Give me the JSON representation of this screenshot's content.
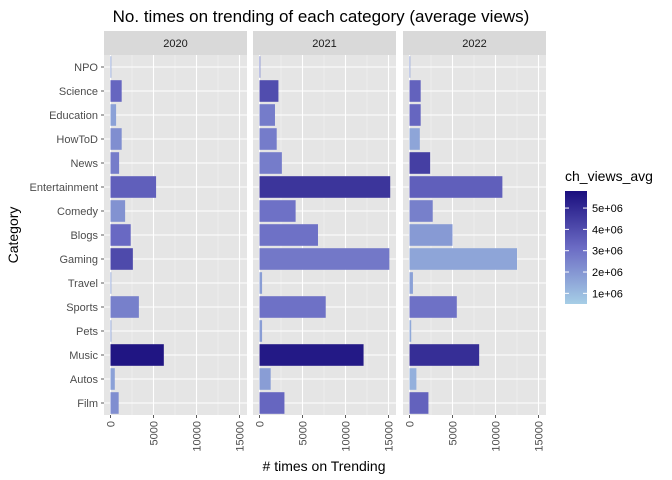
{
  "chart_data": {
    "type": "bar",
    "orientation": "horizontal",
    "title": "No. times on trending of each category (average views)",
    "xlabel": "# times on Trending",
    "ylabel": "Category",
    "xlim": [
      0,
      15000
    ],
    "x_ticks": [
      0,
      5000,
      10000,
      15000
    ],
    "x_tick_labels": [
      "0",
      "5000",
      "10000",
      "15000"
    ],
    "categories": [
      "Film",
      "Autos",
      "Music",
      "Pets",
      "Sports",
      "Travel",
      "Gaming",
      "Blogs",
      "Comedy",
      "Entertainment",
      "News",
      "HowToD",
      "Education",
      "Science",
      "NPO"
    ],
    "panels": [
      {
        "facet": "2020",
        "counts": [
          950,
          500,
          6200,
          100,
          3300,
          50,
          2600,
          2350,
          1700,
          5300,
          1000,
          1300,
          650,
          1300,
          50
        ],
        "avg_views": [
          2200000,
          1700000,
          5600000,
          1700000,
          2600000,
          1700000,
          4100000,
          3200000,
          2100000,
          3500000,
          2700000,
          2200000,
          1700000,
          3300000,
          1700000
        ]
      },
      {
        "facet": "2021",
        "counts": [
          2900,
          1300,
          12100,
          300,
          7700,
          300,
          15100,
          6800,
          4200,
          15200,
          2600,
          2000,
          1800,
          2200,
          100
        ],
        "avg_views": [
          3300000,
          1800000,
          5500000,
          1800000,
          3000000,
          1800000,
          2800000,
          3000000,
          3000000,
          4700000,
          2700000,
          2700000,
          2700000,
          4000000,
          2500000
        ]
      },
      {
        "facet": "2022",
        "counts": [
          2200,
          800,
          8100,
          200,
          5500,
          400,
          12500,
          5000,
          2700,
          10800,
          2400,
          1200,
          1300,
          1300,
          50
        ],
        "avg_views": [
          3400000,
          1300000,
          4900000,
          1500000,
          3000000,
          1700000,
          1600000,
          1900000,
          2600000,
          3500000,
          4400000,
          1600000,
          3300000,
          3400000,
          1900000
        ]
      }
    ],
    "legend": {
      "title": "ch_views_avg",
      "position": "right",
      "ticks": [
        1000000,
        2000000,
        3000000,
        4000000,
        5000000
      ],
      "tick_labels": [
        "1e+06",
        "2e+06",
        "3e+06",
        "4e+06",
        "5e+06"
      ],
      "range": [
        500000,
        5800000
      ]
    },
    "color_low": "#a6cee6",
    "color_mid": "#6b6bc4",
    "color_high": "#1a0e7e",
    "panel_bg": "#e5e5e5",
    "strip_bg": "#d9d9d9",
    "grid": true
  }
}
